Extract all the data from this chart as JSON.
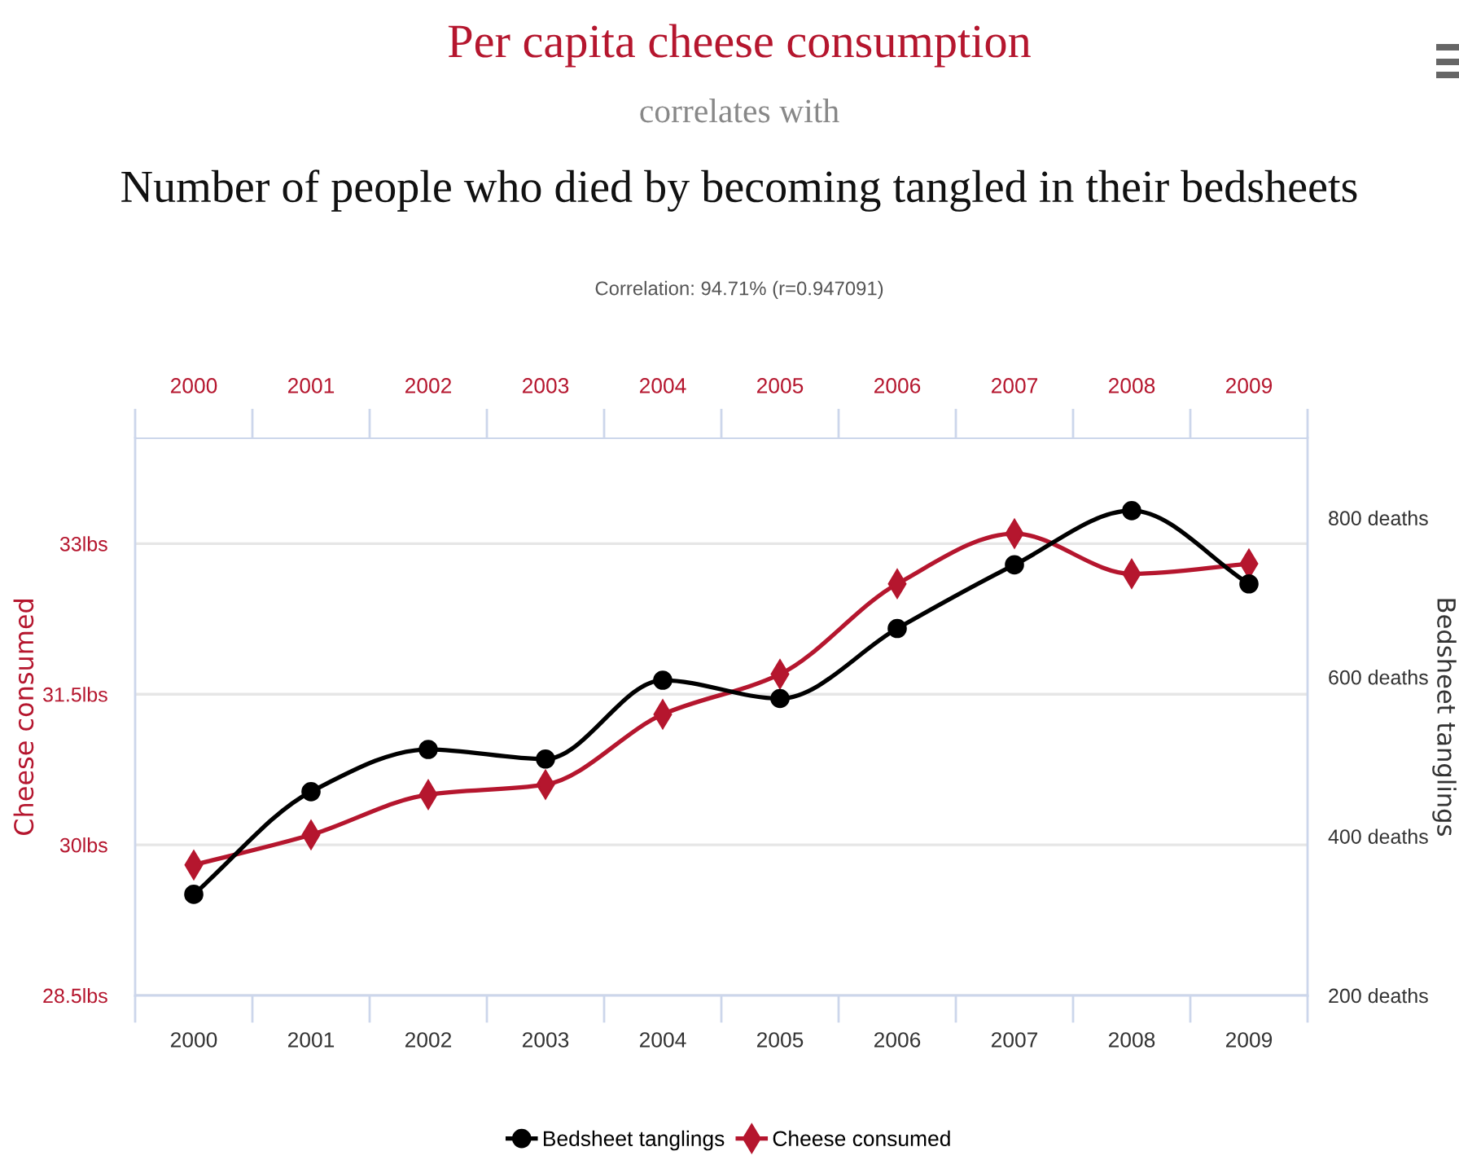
{
  "chart_data": {
    "type": "line",
    "title": "Per capita cheese consumption",
    "subtitle": "correlates with",
    "annotations": [
      "Number of people who died by becoming tangled in their bedsheets",
      "Correlation: 94.71% (r=0.947091)"
    ],
    "ylabel": "Cheese consumed",
    "y2label": "Bedsheet tanglings",
    "categories": [
      "2000",
      "2001",
      "2002",
      "2003",
      "2004",
      "2005",
      "2006",
      "2007",
      "2008",
      "2009"
    ],
    "series": [
      {
        "name": "Bedsheet tanglings",
        "color": "#000000",
        "axis": "y2",
        "marker": "circle",
        "values": [
          327,
          456,
          509,
          497,
          596,
          573,
          661,
          741,
          809,
          717
        ]
      },
      {
        "name": "Cheese consumed",
        "color": "#b5162e",
        "axis": "y",
        "marker": "diamond",
        "values": [
          29.8,
          30.1,
          30.5,
          30.6,
          31.3,
          31.7,
          32.6,
          33.1,
          32.7,
          32.8
        ]
      }
    ],
    "ylim": [
      28.5,
      34.05
    ],
    "yticks": [
      {
        "value": 28.5,
        "label": "28.5lbs"
      },
      {
        "value": 30,
        "label": "30lbs"
      },
      {
        "value": 31.5,
        "label": "31.5lbs"
      },
      {
        "value": 33,
        "label": "33lbs"
      }
    ],
    "y2lim": [
      200,
      900
    ],
    "y2ticks": [
      {
        "value": 200,
        "label": "200 deaths"
      },
      {
        "value": 400,
        "label": "400 deaths"
      },
      {
        "value": 600,
        "label": "600 deaths"
      },
      {
        "value": 800,
        "label": "800 deaths"
      }
    ],
    "grid": "y",
    "legend": "bottom",
    "line_style": "solid"
  }
}
